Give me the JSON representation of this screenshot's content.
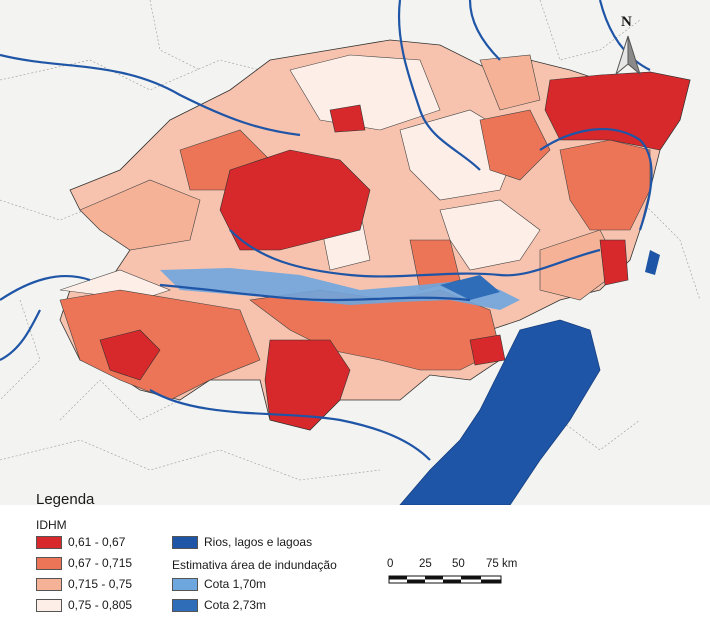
{
  "legend": {
    "title": "Legenda",
    "idhm_title": "IDHM",
    "classes": [
      {
        "label": "0,61 - 0,67",
        "color": "#d7282c"
      },
      {
        "label": "0,67 - 0,715",
        "color": "#ec7457"
      },
      {
        "label": "0,715 - 0,75",
        "color": "#f5b297"
      },
      {
        "label": "0,75 - 0,805",
        "color": "#fdeee8"
      }
    ],
    "water_label": "Rios, lagos e lagoas",
    "water_color": "#1f55a6",
    "flood_title": "Estimativa área de indundação",
    "flood_classes": [
      {
        "label": "Cota 1,70m",
        "color": "#6ea6de"
      },
      {
        "label": "Cota 2,73m",
        "color": "#2f6db8"
      }
    ]
  },
  "scale_bar": {
    "ticks": [
      "0",
      "25",
      "50",
      "75 km"
    ]
  },
  "north_arrow": {
    "label": "N",
    "icon": "north-arrow-icon"
  }
}
